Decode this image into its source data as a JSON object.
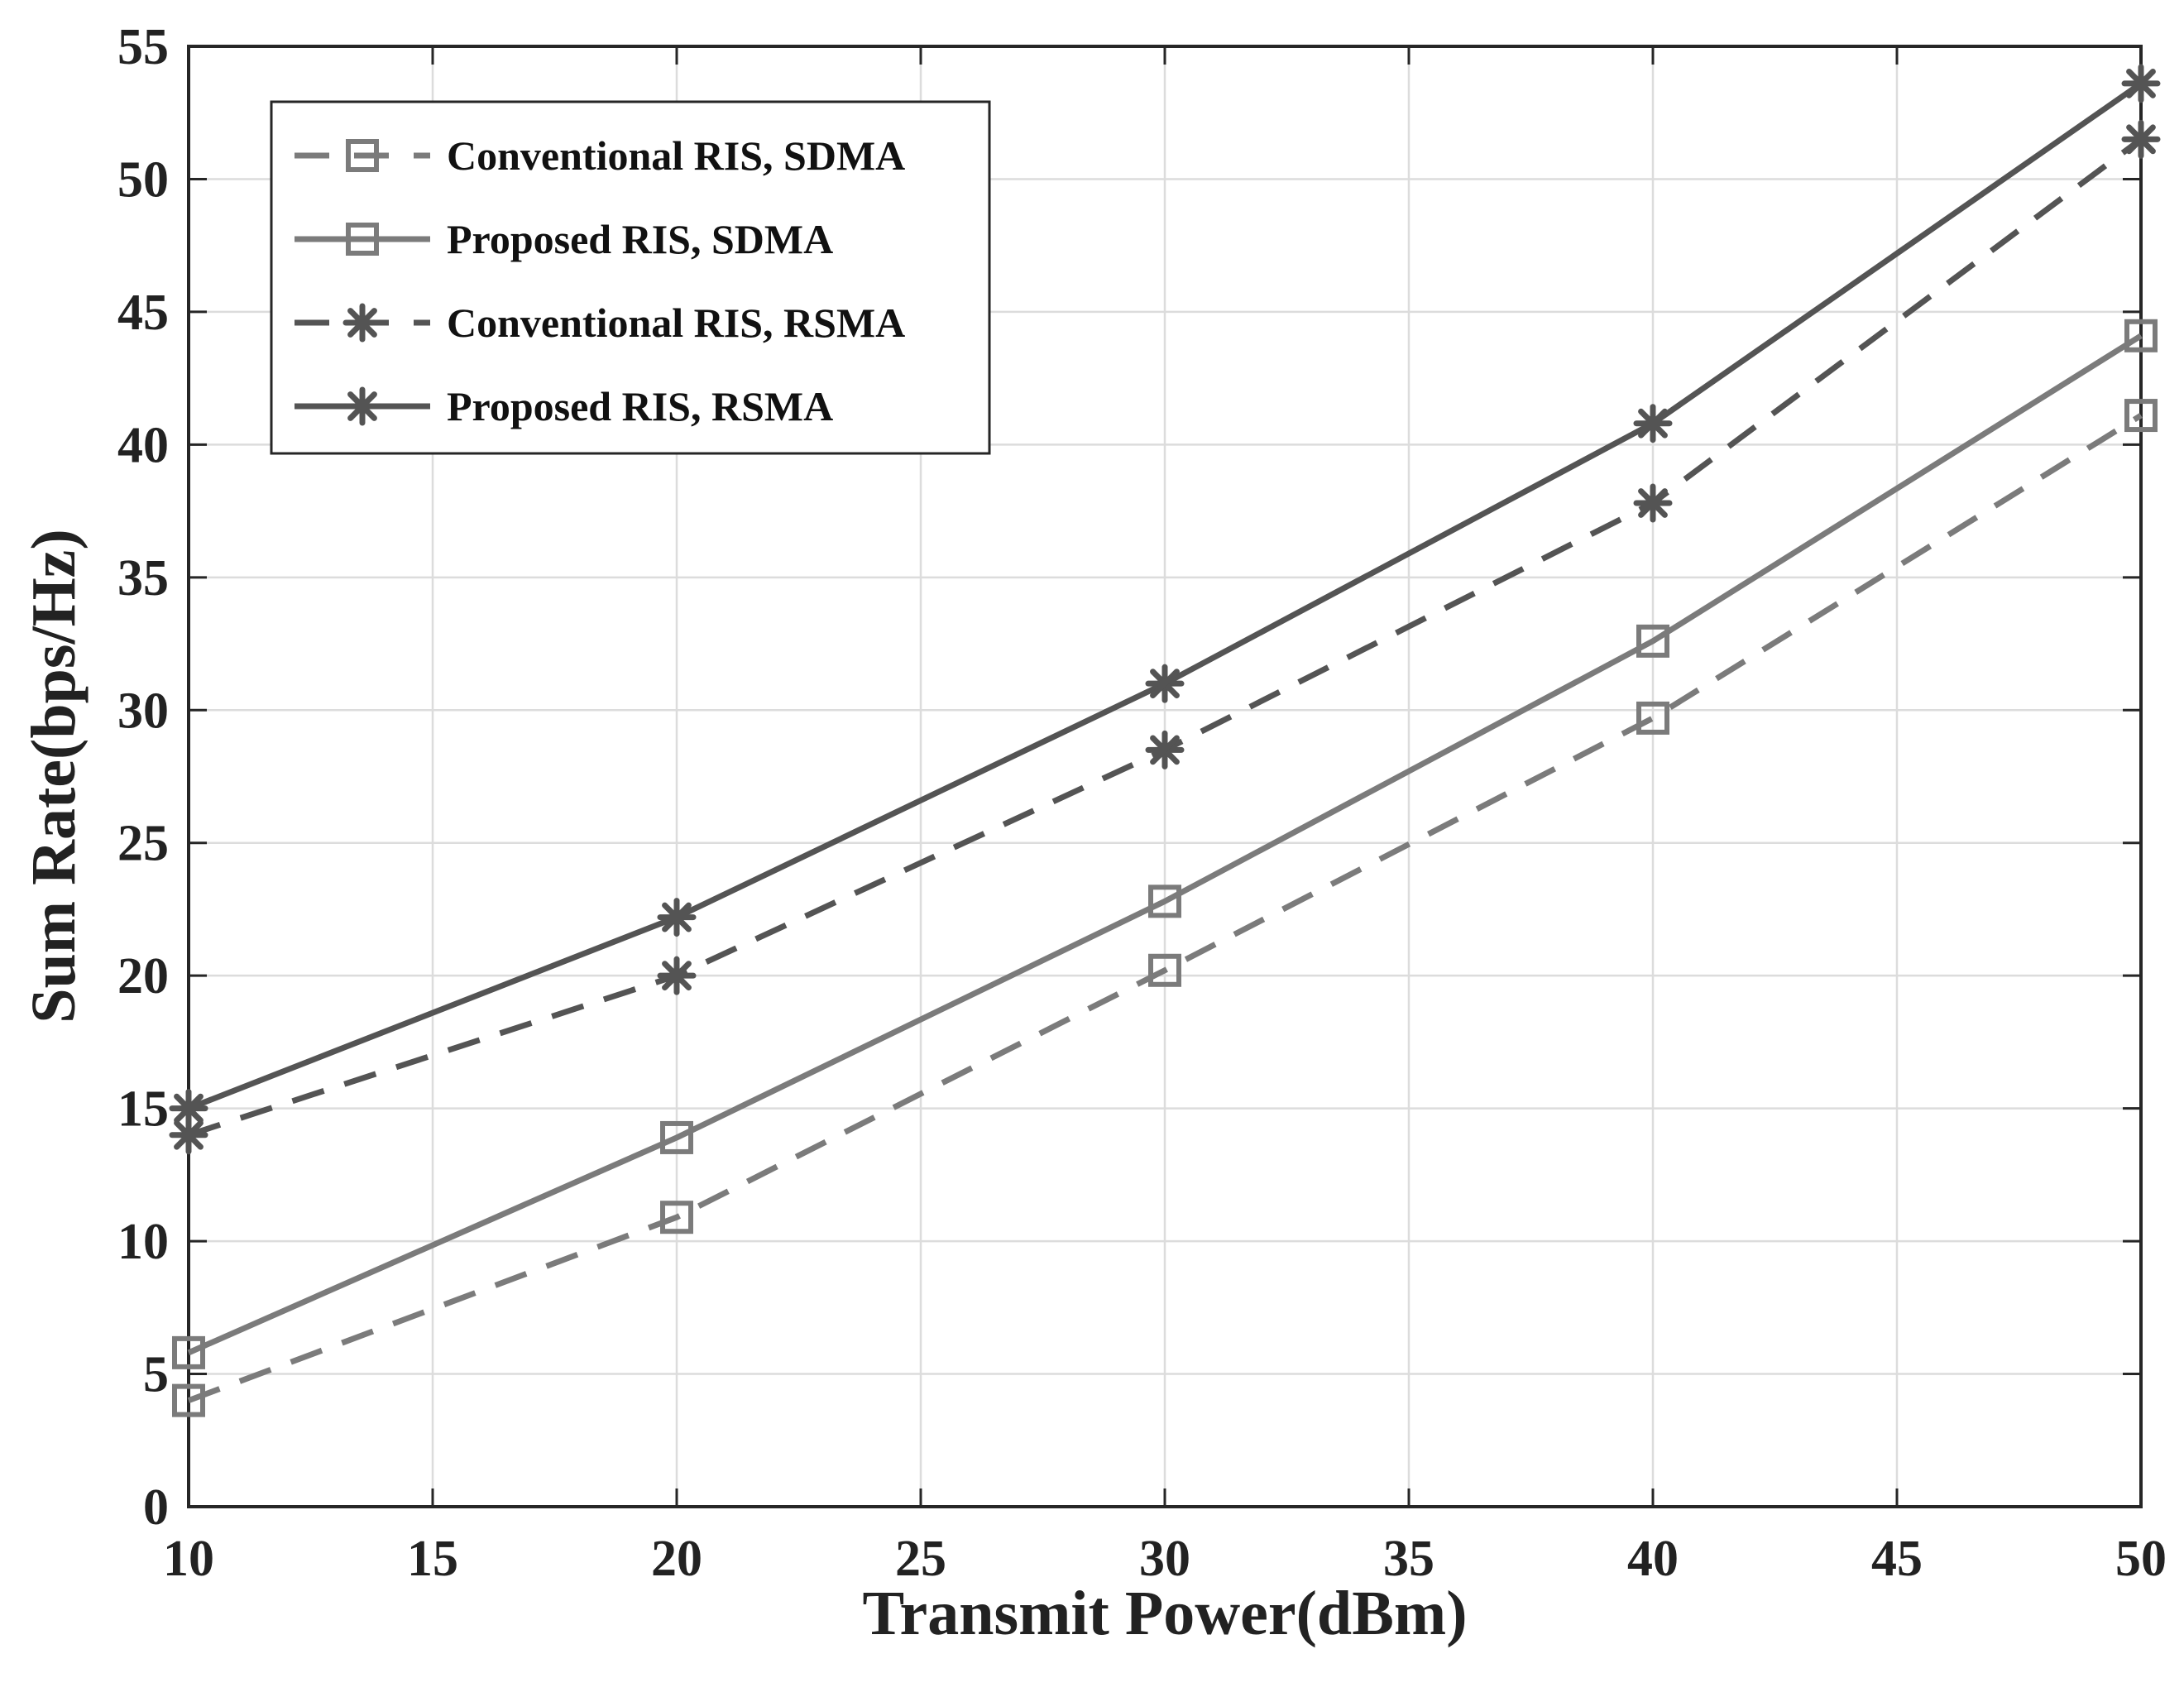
{
  "chart_data": {
    "type": "line",
    "title": "",
    "xlabel": "Transmit Power(dBm)",
    "ylabel": "Sum Rate(bps/Hz)",
    "xlim": [
      10,
      50
    ],
    "ylim": [
      0,
      55
    ],
    "xticks": [
      10,
      15,
      20,
      25,
      30,
      35,
      40,
      45,
      50
    ],
    "yticks": [
      0,
      5,
      10,
      15,
      20,
      25,
      30,
      35,
      40,
      45,
      50,
      55
    ],
    "grid": true,
    "legend_position": "top-left",
    "x": [
      10,
      20,
      30,
      40,
      50
    ],
    "series": [
      {
        "name": "Conventional RIS, SDMA",
        "values": [
          4.0,
          10.9,
          20.2,
          29.7,
          41.1
        ],
        "line": "dashed",
        "marker": "square",
        "color": "#7b7b7b"
      },
      {
        "name": "Proposed RIS, SDMA",
        "values": [
          5.8,
          13.9,
          22.8,
          32.6,
          44.1
        ],
        "line": "solid",
        "marker": "square",
        "color": "#7b7b7b"
      },
      {
        "name": "Conventional RIS, RSMA",
        "values": [
          14.0,
          20.0,
          28.5,
          37.8,
          51.5
        ],
        "line": "dashed",
        "marker": "asterisk",
        "color": "#545454"
      },
      {
        "name": "Proposed RIS, RSMA",
        "values": [
          15.0,
          22.2,
          31.0,
          40.8,
          53.6
        ],
        "line": "solid",
        "marker": "asterisk",
        "color": "#545454"
      }
    ]
  }
}
